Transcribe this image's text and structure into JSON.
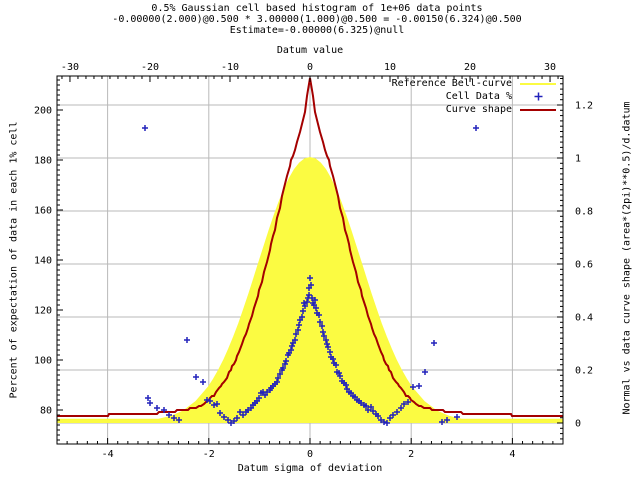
{
  "titles": {
    "line1": "0.5% Gaussian cell based histogram of 1e+06 data points",
    "line2": "-0.00000(2.000)@0.500 * 3.00000(1.000)@0.500 = -0.00150(6.324)@0.500",
    "line3": "Estimate=-0.00000(6.325)@null"
  },
  "axes": {
    "top": {
      "label": "Datum value",
      "range": [
        -31.62,
        31.62
      ],
      "ticks": [
        -30,
        -20,
        -10,
        0,
        10,
        20,
        30
      ],
      "tick_labels": [
        "-30",
        "-20",
        "-10",
        "0",
        "10",
        "20",
        "30"
      ],
      "minor_step": 1
    },
    "bottom": {
      "label": "Datum sigma of deviation",
      "range": [
        -5,
        5
      ],
      "ticks": [
        -4,
        -2,
        0,
        2,
        4
      ],
      "tick_labels": [
        "-4",
        "-2",
        "0",
        "2",
        "4"
      ],
      "minor_step": 0.2
    },
    "left": {
      "label": "Percent of expectation of data in each 1% cell",
      "range": [
        66.4,
        213.6
      ],
      "ticks": [
        80,
        100,
        120,
        140,
        160,
        180,
        200
      ],
      "tick_labels": [
        "80",
        "100",
        "120",
        "140",
        "160",
        "180",
        "200"
      ],
      "minor_step": 2
    },
    "right": {
      "label": "Normal vs data curve shape (area*(2pi)**0.5)/d.datum",
      "range": [
        -0.0792,
        1.3094
      ],
      "ticks": [
        0,
        0.2,
        0.4,
        0.6,
        0.8,
        1,
        1.2
      ],
      "tick_labels": [
        "0",
        "0.2",
        "0.4",
        "0.6",
        "0.8",
        "1",
        "1.2"
      ],
      "minor_step": 0.02
    }
  },
  "colors": {
    "grid": "#b9b9b9",
    "frame": "#000000",
    "bell_yellow": "#fbfb42",
    "data_blue": "#2222bb",
    "shape_red": "#a40000"
  },
  "chart_data": {
    "type": "line",
    "title": "0.5% Gaussian cell based histogram of 1e+06 data points",
    "xlabel": "Datum sigma of deviation",
    "x2label": "Datum value",
    "ylabel": "Percent of expectation of data in each 1% cell",
    "y2label": "Normal vs data curve shape (area*(2pi)**0.5)/d.datum",
    "grid": true,
    "legend_position": "top-right-inside",
    "series": [
      {
        "name": "Reference Bell-curve",
        "type": "area",
        "axis": "y2",
        "color": "#fbfb42",
        "points": [
          [
            -5,
            0.012
          ],
          [
            -4.5,
            0.012
          ],
          [
            -4,
            0.012
          ],
          [
            -3.5,
            0.012
          ],
          [
            -3,
            0.012
          ],
          [
            -2.75,
            0.023
          ],
          [
            -2.5,
            0.044
          ],
          [
            -2.25,
            0.08
          ],
          [
            -2,
            0.135
          ],
          [
            -1.9,
            0.165
          ],
          [
            -1.8,
            0.198
          ],
          [
            -1.7,
            0.236
          ],
          [
            -1.6,
            0.278
          ],
          [
            -1.5,
            0.325
          ],
          [
            -1.4,
            0.375
          ],
          [
            -1.3,
            0.43
          ],
          [
            -1.2,
            0.487
          ],
          [
            -1.1,
            0.546
          ],
          [
            -1,
            0.607
          ],
          [
            -0.9,
            0.667
          ],
          [
            -0.8,
            0.726
          ],
          [
            -0.7,
            0.783
          ],
          [
            -0.6,
            0.835
          ],
          [
            -0.5,
            0.882
          ],
          [
            -0.4,
            0.923
          ],
          [
            -0.3,
            0.956
          ],
          [
            -0.2,
            0.98
          ],
          [
            -0.1,
            0.995
          ],
          [
            0,
            1
          ],
          [
            0.1,
            0.995
          ],
          [
            0.2,
            0.98
          ],
          [
            0.3,
            0.956
          ],
          [
            0.4,
            0.923
          ],
          [
            0.5,
            0.882
          ],
          [
            0.6,
            0.835
          ],
          [
            0.7,
            0.783
          ],
          [
            0.8,
            0.726
          ],
          [
            0.9,
            0.667
          ],
          [
            1,
            0.607
          ],
          [
            1.1,
            0.546
          ],
          [
            1.2,
            0.487
          ],
          [
            1.3,
            0.43
          ],
          [
            1.4,
            0.375
          ],
          [
            1.5,
            0.325
          ],
          [
            1.6,
            0.278
          ],
          [
            1.7,
            0.236
          ],
          [
            1.8,
            0.198
          ],
          [
            1.9,
            0.165
          ],
          [
            2,
            0.135
          ],
          [
            2.25,
            0.08
          ],
          [
            2.5,
            0.044
          ],
          [
            2.75,
            0.023
          ],
          [
            3,
            0.012
          ],
          [
            3.5,
            0.012
          ],
          [
            4,
            0.012
          ],
          [
            4.5,
            0.012
          ],
          [
            5,
            0.012
          ]
        ]
      },
      {
        "name": "Cell Data %",
        "type": "scatter",
        "axis": "y1",
        "color": "#2222bb",
        "marker": "plus",
        "points": [
          [
            -3.26,
            192.8
          ],
          [
            -3.21,
            84.8
          ],
          [
            -3.16,
            82.8
          ],
          [
            -3.02,
            80.8
          ],
          [
            -2.89,
            80.0
          ],
          [
            -2.79,
            78.0
          ],
          [
            -2.69,
            76.8
          ],
          [
            -2.59,
            76.0
          ],
          [
            -2.43,
            108.0
          ],
          [
            -2.25,
            93.2
          ],
          [
            -2.11,
            91.2
          ],
          [
            -2.04,
            84.0
          ],
          [
            -1.97,
            83.6
          ],
          [
            -1.9,
            82.0
          ],
          [
            -1.84,
            82.4
          ],
          [
            -1.77,
            78.8
          ],
          [
            -1.7,
            77.2
          ],
          [
            -1.63,
            76.0
          ],
          [
            -1.56,
            74.8
          ],
          [
            -1.5,
            75.6
          ],
          [
            -1.44,
            76.8
          ],
          [
            -1.38,
            79.2
          ],
          [
            -1.32,
            78.0
          ],
          [
            -1.27,
            79.2
          ],
          [
            -1.22,
            80.0
          ],
          [
            -1.17,
            80.8
          ],
          [
            -1.13,
            82.0
          ],
          [
            -1.08,
            82.8
          ],
          [
            -1.04,
            83.6
          ],
          [
            -1.0,
            84.8
          ],
          [
            -0.96,
            86.8
          ],
          [
            -0.92,
            87.2
          ],
          [
            -0.88,
            86.0
          ],
          [
            -0.84,
            87.2
          ],
          [
            -0.8,
            88.0
          ],
          [
            -0.77,
            88.8
          ],
          [
            -0.73,
            89.6
          ],
          [
            -0.7,
            90.4
          ],
          [
            -0.66,
            91.2
          ],
          [
            -0.63,
            92.8
          ],
          [
            -0.6,
            94.4
          ],
          [
            -0.56,
            96.0
          ],
          [
            -0.53,
            96.8
          ],
          [
            -0.5,
            98.4
          ],
          [
            -0.47,
            99.6
          ],
          [
            -0.44,
            102.0
          ],
          [
            -0.41,
            102.8
          ],
          [
            -0.38,
            104.0
          ],
          [
            -0.35,
            105.6
          ],
          [
            -0.33,
            106.8
          ],
          [
            -0.3,
            108.0
          ],
          [
            -0.27,
            110.4
          ],
          [
            -0.24,
            112.0
          ],
          [
            -0.21,
            114.0
          ],
          [
            -0.19,
            116.0
          ],
          [
            -0.16,
            117.2
          ],
          [
            -0.13,
            119.6
          ],
          [
            -0.11,
            122.8
          ],
          [
            -0.09,
            121.6
          ],
          [
            -0.06,
            123.2
          ],
          [
            -0.04,
            125.0
          ],
          [
            -0.02,
            129.0
          ],
          [
            -0.01,
            126.0
          ],
          [
            0.0,
            132.8
          ],
          [
            0.02,
            130.0
          ],
          [
            0.03,
            124.8
          ],
          [
            0.05,
            123.0
          ],
          [
            0.08,
            122.0
          ],
          [
            0.1,
            124.0
          ],
          [
            0.12,
            120.8
          ],
          [
            0.14,
            118.8
          ],
          [
            0.17,
            118.0
          ],
          [
            0.2,
            115.2
          ],
          [
            0.23,
            113.6
          ],
          [
            0.25,
            111.2
          ],
          [
            0.28,
            109.6
          ],
          [
            0.31,
            108.0
          ],
          [
            0.34,
            106.4
          ],
          [
            0.36,
            105.2
          ],
          [
            0.39,
            103.2
          ],
          [
            0.42,
            101.2
          ],
          [
            0.45,
            100.4
          ],
          [
            0.48,
            98.8
          ],
          [
            0.51,
            98.0
          ],
          [
            0.54,
            95.2
          ],
          [
            0.57,
            94.8
          ],
          [
            0.6,
            93.6
          ],
          [
            0.64,
            91.6
          ],
          [
            0.67,
            90.8
          ],
          [
            0.71,
            90.0
          ],
          [
            0.74,
            88.4
          ],
          [
            0.78,
            87.2
          ],
          [
            0.81,
            86.8
          ],
          [
            0.85,
            85.6
          ],
          [
            0.89,
            85.2
          ],
          [
            0.93,
            84.0
          ],
          [
            0.97,
            83.6
          ],
          [
            1.01,
            82.8
          ],
          [
            1.06,
            82.0
          ],
          [
            1.1,
            81.6
          ],
          [
            1.15,
            80.0
          ],
          [
            1.2,
            81.2
          ],
          [
            1.25,
            79.6
          ],
          [
            1.3,
            78.4
          ],
          [
            1.35,
            77.6
          ],
          [
            1.41,
            76.0
          ],
          [
            1.47,
            75.2
          ],
          [
            1.53,
            74.8
          ],
          [
            1.59,
            76.8
          ],
          [
            1.65,
            78.0
          ],
          [
            1.72,
            79.2
          ],
          [
            1.79,
            80.8
          ],
          [
            1.86,
            82.4
          ],
          [
            1.94,
            83.2
          ],
          [
            2.04,
            89.2
          ],
          [
            2.15,
            89.6
          ],
          [
            2.27,
            95.2
          ],
          [
            2.45,
            106.8
          ],
          [
            2.6,
            75.2
          ],
          [
            2.7,
            76.0
          ],
          [
            2.9,
            77.2
          ],
          [
            3.28,
            192.8
          ]
        ]
      },
      {
        "name": "Curve shape",
        "type": "line",
        "axis": "y2",
        "color": "#a40000",
        "points": [
          [
            -5,
            0.028
          ],
          [
            -4.6,
            0.028
          ],
          [
            -4.2,
            0.028
          ],
          [
            -4,
            0.029
          ],
          [
            -3.9,
            0.036
          ],
          [
            -3.6,
            0.035
          ],
          [
            -3.3,
            0.034
          ],
          [
            -3.1,
            0.036
          ],
          [
            -2.9,
            0.04
          ],
          [
            -2.7,
            0.044
          ],
          [
            -2.5,
            0.05
          ],
          [
            -2.3,
            0.057
          ],
          [
            -2.15,
            0.065
          ],
          [
            -2,
            0.085
          ],
          [
            -1.9,
            0.105
          ],
          [
            -1.8,
            0.13
          ],
          [
            -1.7,
            0.155
          ],
          [
            -1.6,
            0.19
          ],
          [
            -1.5,
            0.225
          ],
          [
            -1.4,
            0.27
          ],
          [
            -1.3,
            0.32
          ],
          [
            -1.2,
            0.375
          ],
          [
            -1.1,
            0.435
          ],
          [
            -1,
            0.5
          ],
          [
            -0.9,
            0.57
          ],
          [
            -0.8,
            0.65
          ],
          [
            -0.7,
            0.73
          ],
          [
            -0.6,
            0.815
          ],
          [
            -0.5,
            0.9
          ],
          [
            -0.4,
            0.97
          ],
          [
            -0.3,
            1.03
          ],
          [
            -0.2,
            1.095
          ],
          [
            -0.15,
            1.13
          ],
          [
            -0.1,
            1.175
          ],
          [
            -0.05,
            1.235
          ],
          [
            0,
            1.3
          ],
          [
            0.05,
            1.235
          ],
          [
            0.1,
            1.175
          ],
          [
            0.15,
            1.13
          ],
          [
            0.2,
            1.095
          ],
          [
            0.3,
            1.03
          ],
          [
            0.4,
            0.97
          ],
          [
            0.5,
            0.9
          ],
          [
            0.6,
            0.815
          ],
          [
            0.7,
            0.73
          ],
          [
            0.8,
            0.65
          ],
          [
            0.9,
            0.57
          ],
          [
            1,
            0.5
          ],
          [
            1.1,
            0.435
          ],
          [
            1.2,
            0.375
          ],
          [
            1.3,
            0.32
          ],
          [
            1.4,
            0.27
          ],
          [
            1.5,
            0.225
          ],
          [
            1.6,
            0.19
          ],
          [
            1.7,
            0.155
          ],
          [
            1.8,
            0.13
          ],
          [
            1.9,
            0.105
          ],
          [
            2,
            0.085
          ],
          [
            2.15,
            0.065
          ],
          [
            2.3,
            0.057
          ],
          [
            2.5,
            0.05
          ],
          [
            2.7,
            0.044
          ],
          [
            2.9,
            0.04
          ],
          [
            3.1,
            0.036
          ],
          [
            3.3,
            0.034
          ],
          [
            3.6,
            0.035
          ],
          [
            3.9,
            0.036
          ],
          [
            4,
            0.029
          ],
          [
            4.2,
            0.028
          ],
          [
            4.6,
            0.028
          ],
          [
            5,
            0.028
          ]
        ]
      }
    ]
  }
}
